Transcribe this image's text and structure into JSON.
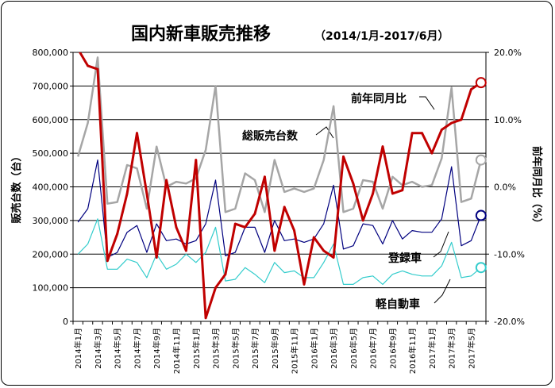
{
  "chart_data": {
    "type": "line",
    "title": "国内新車販売推移",
    "subtitle": "（2014/1月-2017/6月）",
    "ylabel": "販売台数（台）",
    "ylabel_right": "前年同月比（%）",
    "ylim": [
      0,
      800000
    ],
    "ylim_right": [
      -20,
      20
    ],
    "yticks": [
      "0",
      "100,000",
      "200,000",
      "300,000",
      "400,000",
      "500,000",
      "600,000",
      "700,000",
      "800,000"
    ],
    "yticks_right": [
      "-20.0%",
      "-10.0%",
      "0.0%",
      "10.0%",
      "20.0%"
    ],
    "x": [
      "2014年1月",
      "2014年2月",
      "2014年3月",
      "2014年4月",
      "2014年5月",
      "2014年6月",
      "2014年7月",
      "2014年8月",
      "2014年9月",
      "2014年10月",
      "2014年11月",
      "2014年12月",
      "2015年1月",
      "2015年2月",
      "2015年3月",
      "2015年4月",
      "2015年5月",
      "2015年6月",
      "2015年7月",
      "2015年8月",
      "2015年9月",
      "2015年10月",
      "2015年11月",
      "2015年12月",
      "2016年1月",
      "2016年2月",
      "2016年3月",
      "2016年4月",
      "2016年5月",
      "2016年6月",
      "2016年7月",
      "2016年8月",
      "2016年9月",
      "2016年10月",
      "2016年11月",
      "2016年12月",
      "2017年1月",
      "2017年2月",
      "2017年3月",
      "2017年4月",
      "2017年5月",
      "2017年6月"
    ],
    "xtick_labels": [
      "2014年1月",
      "2014年3月",
      "2014年5月",
      "2014年7月",
      "2014年9月",
      "2014年11月",
      "2015年1月",
      "2015年3月",
      "2015年5月",
      "2015年7月",
      "2015年9月",
      "2015年11月",
      "2016年1月",
      "2016年3月",
      "2016年5月",
      "2016年7月",
      "2016年9月",
      "2016年11月",
      "2017年1月",
      "2017年3月",
      "2017年5月"
    ],
    "grid": true,
    "series": [
      {
        "name": "総販売台数",
        "axis": "left",
        "color": "#a6a6a6",
        "values": [
          490000,
          590000,
          785000,
          350000,
          355000,
          465000,
          455000,
          335000,
          520000,
          400000,
          415000,
          410000,
          425000,
          510000,
          700000,
          325000,
          335000,
          440000,
          420000,
          325000,
          480000,
          385000,
          395000,
          385000,
          395000,
          480000,
          640000,
          325000,
          335000,
          420000,
          415000,
          335000,
          430000,
          405000,
          415000,
          400000,
          405000,
          485000,
          695000,
          355000,
          365000,
          480000
        ]
      },
      {
        "name": "登録車",
        "axis": "left",
        "color": "#00007f",
        "values": [
          295000,
          335000,
          480000,
          190000,
          205000,
          265000,
          285000,
          205000,
          290000,
          240000,
          245000,
          230000,
          240000,
          290000,
          420000,
          195000,
          205000,
          280000,
          280000,
          205000,
          300000,
          240000,
          245000,
          235000,
          245000,
          290000,
          405000,
          215000,
          225000,
          290000,
          285000,
          230000,
          300000,
          245000,
          270000,
          265000,
          265000,
          305000,
          460000,
          225000,
          240000,
          315000
        ]
      },
      {
        "name": "軽自動車",
        "axis": "left",
        "color": "#33cccc",
        "values": [
          200000,
          230000,
          305000,
          155000,
          155000,
          185000,
          175000,
          130000,
          200000,
          155000,
          170000,
          200000,
          175000,
          205000,
          280000,
          120000,
          125000,
          160000,
          140000,
          115000,
          175000,
          145000,
          150000,
          130000,
          130000,
          175000,
          230000,
          110000,
          110000,
          130000,
          135000,
          110000,
          140000,
          150000,
          140000,
          135000,
          135000,
          165000,
          235000,
          130000,
          135000,
          160000
        ]
      },
      {
        "name": "前年同月比",
        "axis": "right",
        "color": "#c00000",
        "values": [
          20.5,
          18,
          17.5,
          -11,
          -7,
          -1,
          8,
          -1,
          -10.5,
          1,
          -6,
          -9.5,
          4,
          -19.5,
          -15,
          -13,
          -5.5,
          -6,
          -4,
          1.5,
          -9.5,
          -3,
          -6.5,
          -14.5,
          -7.5,
          -9.5,
          -10.5,
          4.5,
          0.5,
          -5,
          -1,
          6,
          -1,
          -0.5,
          8,
          8,
          5,
          8.5,
          9.5,
          10,
          14.5,
          15.5
        ]
      }
    ],
    "labels": {
      "total": "総販売台数",
      "registered": "登録車",
      "kei": "軽自動車",
      "yoy": "前年同月比"
    }
  }
}
